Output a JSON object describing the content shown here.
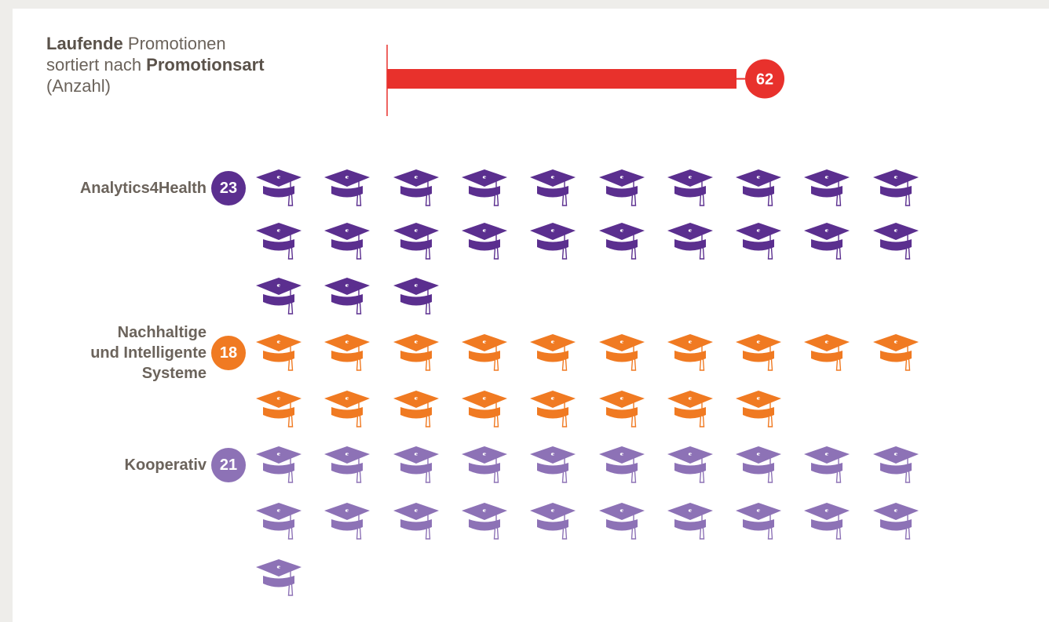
{
  "title": {
    "part1_bold": "Laufende",
    "part2": " Promotionen",
    "part3": "sortiert nach ",
    "part4_bold": "Promotionsart",
    "part5": "(Anzahl)"
  },
  "colors": {
    "total": "#e8312c",
    "Analytics4Health": "#5b2f8f",
    "Nachhaltige und Intelligente Systeme": "#f07a22",
    "Kooperativ": "#8d72b6"
  },
  "icon": "graduation-cap-icon",
  "chart_data": {
    "type": "bar",
    "total": {
      "value": 62,
      "label": "62"
    },
    "categories": [
      "Analytics4Health",
      "Nachhaltige und Intelligente Systeme",
      "Kooperativ"
    ],
    "category_lines": [
      [
        "Analytics4Health"
      ],
      [
        "Nachhaltige",
        "und Intelligente",
        "Systeme"
      ],
      [
        "Kooperativ"
      ]
    ],
    "values": [
      23,
      18,
      21
    ],
    "value_labels": [
      "23",
      "18",
      "21"
    ],
    "icons_per_row": 10
  }
}
